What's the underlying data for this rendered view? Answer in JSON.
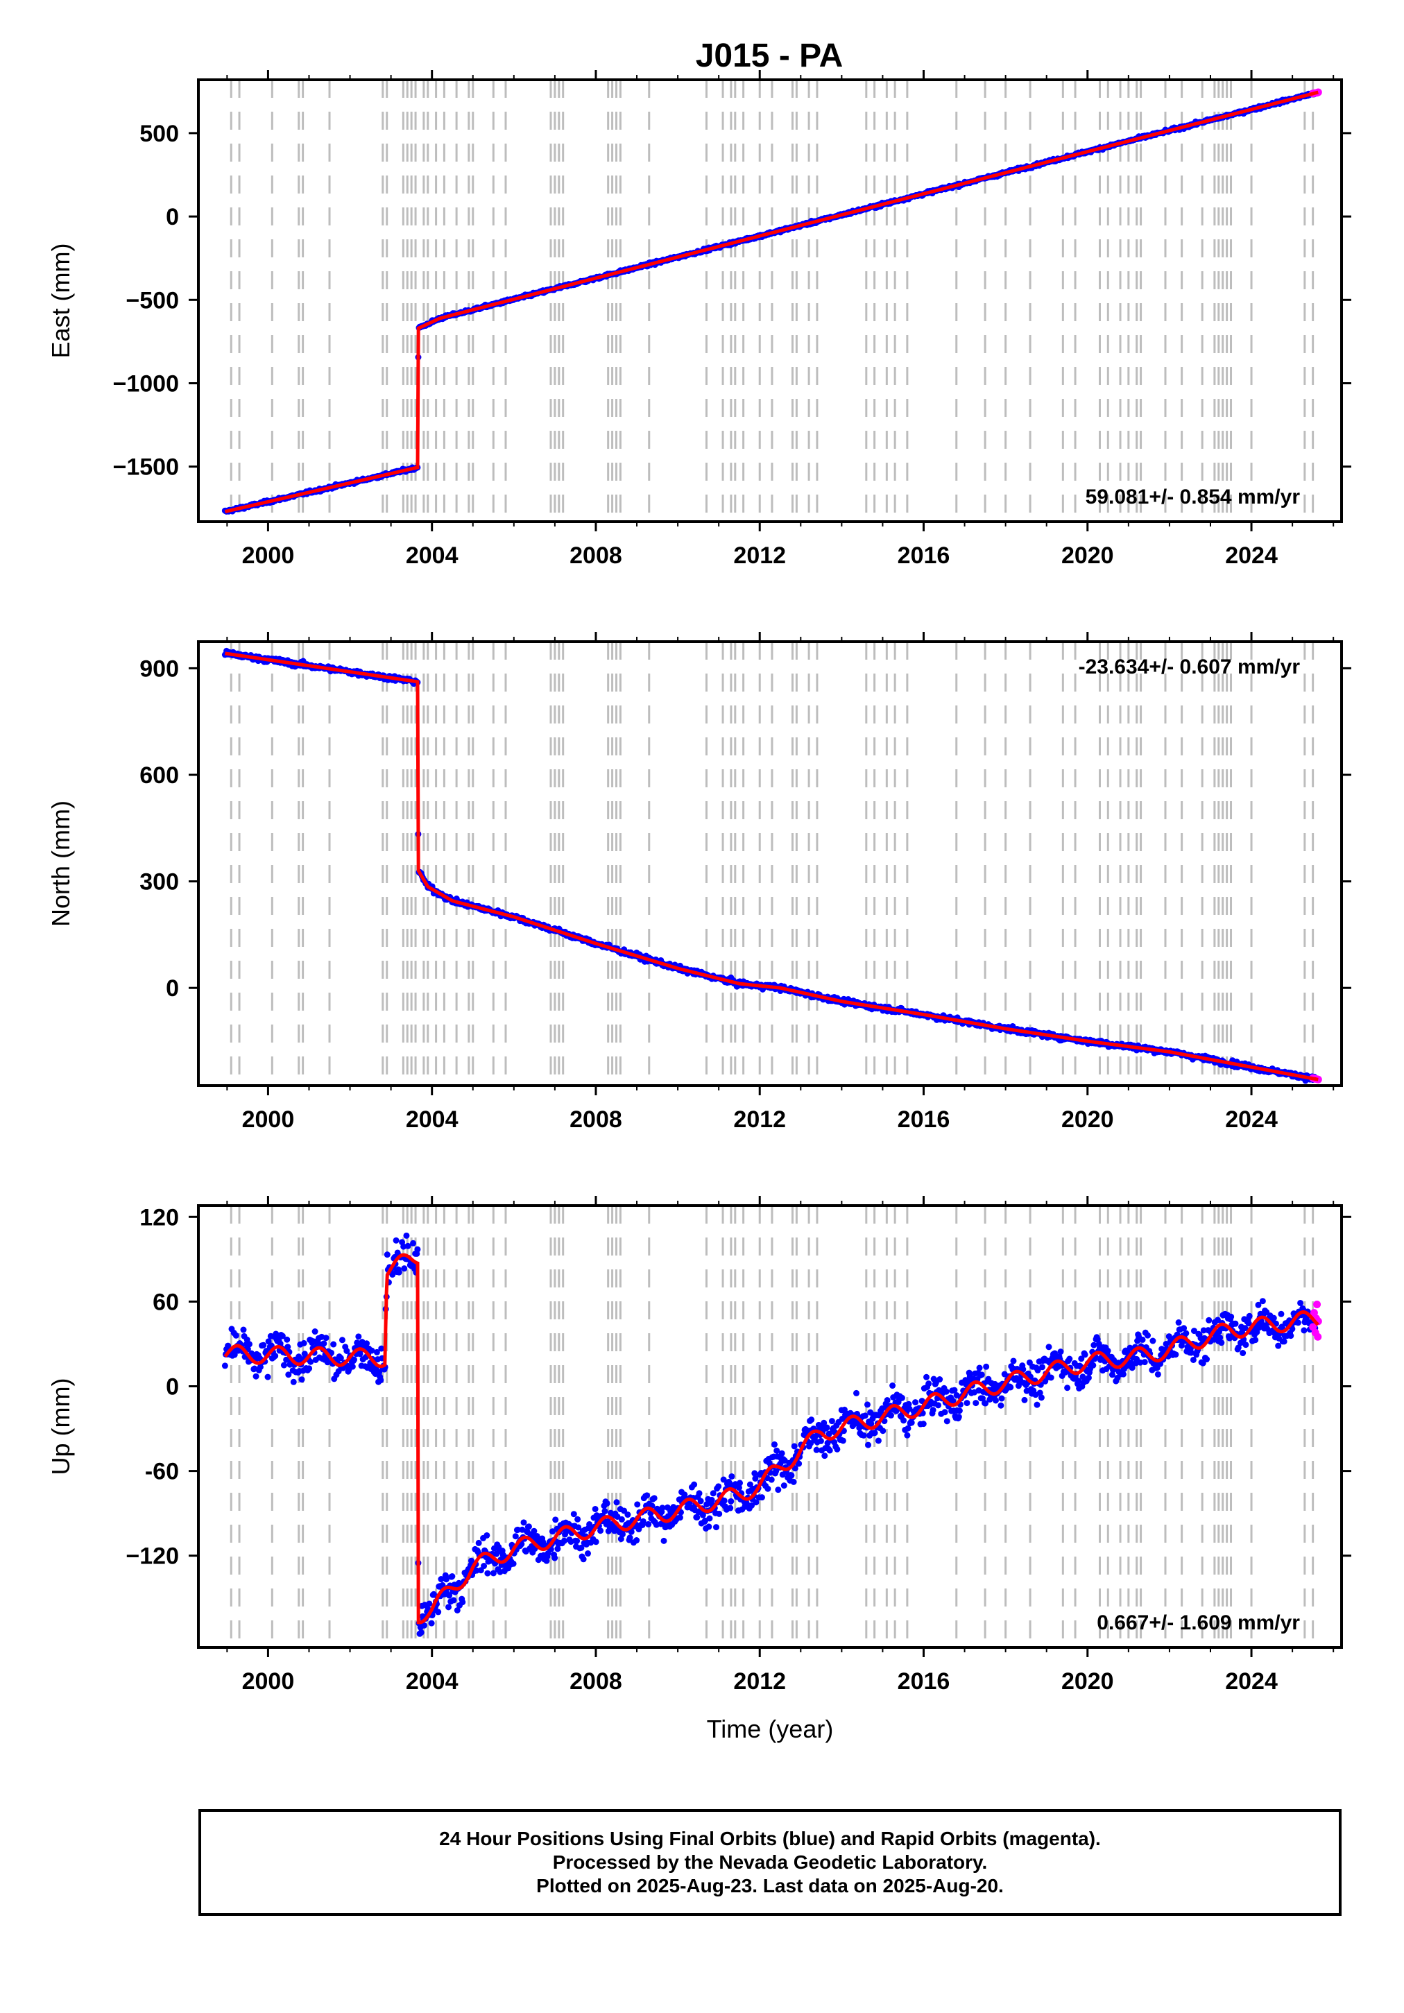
{
  "title": "J015 - PA",
  "colors": {
    "final": "#0000ff",
    "rapid": "#ff00ff",
    "model": "#ff0000",
    "events": "#bdbdbd",
    "frame": "#000000"
  },
  "chart_data": [
    {
      "type": "scatter",
      "name": "east",
      "ylabel": "East (mm)",
      "xlabel": "",
      "xlim": [
        1998.3,
        2026.2
      ],
      "ylim": [
        -1830,
        820
      ],
      "xticks": [
        2000,
        2004,
        2008,
        2012,
        2016,
        2020,
        2024
      ],
      "xticklabels": [
        "2000",
        "2004",
        "2008",
        "2012",
        "2016",
        "2020",
        "2024"
      ],
      "yticks": [
        500,
        0,
        -500,
        -1000,
        -1500
      ],
      "yticklabels": [
        "500",
        "0",
        "−500",
        "−1000",
        "−1500"
      ],
      "rate_label": "59.081+/- 0.854 mm/yr",
      "rate_position": "bottom-right",
      "scatter_noise": 6,
      "model": {
        "x": [
          1998.95,
          2003.65,
          2003.67,
          2004.2,
          2025.63
        ],
        "y": [
          -1770,
          -1505,
          -670,
          -610,
          745
        ]
      },
      "rapid_points": [
        [
          2025.5,
          738
        ],
        [
          2025.55,
          740
        ],
        [
          2025.6,
          742
        ],
        [
          2025.63,
          745
        ]
      ],
      "event_lines": [
        1999.1,
        1999.3,
        2000.1,
        2000.75,
        2000.85,
        2001.5,
        2002.8,
        2002.9,
        2003.3,
        2003.4,
        2003.5,
        2003.6,
        2003.8,
        2003.9,
        2004.1,
        2004.3,
        2004.6,
        2004.9,
        2005.0,
        2005.5,
        2005.8,
        2006.9,
        2007.0,
        2007.1,
        2007.2,
        2008.3,
        2008.4,
        2008.5,
        2008.6,
        2009.3,
        2010.7,
        2011.1,
        2011.3,
        2011.4,
        2011.6,
        2012.0,
        2012.3,
        2012.8,
        2012.9,
        2013.2,
        2013.4,
        2014.6,
        2014.8,
        2015.1,
        2015.3,
        2015.6,
        2016.8,
        2017.5,
        2018.0,
        2018.6,
        2019.4,
        2019.7,
        2020.3,
        2020.5,
        2020.8,
        2021.0,
        2021.2,
        2021.3,
        2021.9,
        2022.3,
        2022.8,
        2023.1,
        2023.2,
        2023.3,
        2023.4,
        2023.5,
        2024.0,
        2025.3,
        2025.5
      ]
    },
    {
      "type": "scatter",
      "name": "north",
      "ylabel": "North (mm)",
      "xlabel": "",
      "xlim": [
        1998.3,
        2026.2
      ],
      "ylim": [
        -275,
        975
      ],
      "xticks": [
        2000,
        2004,
        2008,
        2012,
        2016,
        2020,
        2024
      ],
      "xticklabels": [
        "2000",
        "2004",
        "2008",
        "2012",
        "2016",
        "2020",
        "2024"
      ],
      "yticks": [
        900,
        600,
        300,
        0
      ],
      "yticklabels": [
        "900",
        "600",
        "300",
        "0"
      ],
      "rate_label": "-23.634+/- 0.607 mm/yr",
      "rate_position": "top-right",
      "scatter_noise": 5,
      "model": {
        "x": [
          1998.95,
          2003.65,
          2003.67,
          2003.9,
          2004.5,
          2006.0,
          2008.0,
          2010.0,
          2011.5,
          2012.5,
          2014.0,
          2016.0,
          2018.0,
          2020.0,
          2022.0,
          2025.63
        ],
        "y": [
          942,
          862,
          330,
          285,
          245,
          200,
          125,
          55,
          12,
          0,
          -38,
          -75,
          -115,
          -150,
          -180,
          -258
        ]
      },
      "rapid_points": [
        [
          2025.5,
          -254
        ],
        [
          2025.55,
          -256
        ],
        [
          2025.6,
          -257
        ],
        [
          2025.63,
          -258
        ]
      ],
      "event_lines": [
        1999.1,
        1999.3,
        2000.1,
        2000.75,
        2000.85,
        2001.5,
        2002.8,
        2002.9,
        2003.3,
        2003.4,
        2003.5,
        2003.6,
        2003.8,
        2003.9,
        2004.1,
        2004.3,
        2004.6,
        2004.9,
        2005.0,
        2005.5,
        2005.8,
        2006.9,
        2007.0,
        2007.1,
        2007.2,
        2008.3,
        2008.4,
        2008.5,
        2008.6,
        2009.3,
        2010.7,
        2011.1,
        2011.3,
        2011.4,
        2011.6,
        2012.0,
        2012.3,
        2012.8,
        2012.9,
        2013.2,
        2013.4,
        2014.6,
        2014.8,
        2015.1,
        2015.3,
        2015.6,
        2016.8,
        2017.5,
        2018.0,
        2018.6,
        2019.4,
        2019.7,
        2020.3,
        2020.5,
        2020.8,
        2021.0,
        2021.2,
        2021.3,
        2021.9,
        2022.3,
        2022.8,
        2023.1,
        2023.2,
        2023.3,
        2023.4,
        2023.5,
        2024.0,
        2025.3,
        2025.5
      ]
    },
    {
      "type": "scatter",
      "name": "up",
      "ylabel": "Up (mm)",
      "xlabel": "Time (year)",
      "xlim": [
        1998.3,
        2026.2
      ],
      "ylim": [
        -185,
        128
      ],
      "xticks": [
        2000,
        2004,
        2008,
        2012,
        2016,
        2020,
        2024
      ],
      "xticklabels": [
        "2000",
        "2004",
        "2008",
        "2012",
        "2016",
        "2020",
        "2024"
      ],
      "yticks": [
        120,
        60,
        0,
        -60,
        -120
      ],
      "yticklabels": [
        "120",
        "60",
        "0",
        "-60",
        "−120"
      ],
      "rate_label": "0.667+/- 1.609 mm/yr",
      "rate_position": "bottom-right",
      "scatter_noise": 9,
      "model": {
        "x": [
          1998.95,
          2002.85,
          2002.9,
          2003.65,
          2003.67,
          2004.0,
          2005.0,
          2006.0,
          2008.0,
          2010.0,
          2011.5,
          2012.0,
          2013.5,
          2015.5,
          2017.0,
          2019.0,
          2020.0,
          2021.5,
          2023.5,
          2025.63
        ],
        "y": [
          23,
          20,
          82,
          92,
          -162,
          -158,
          -128,
          -115,
          -100,
          -88,
          -77,
          -70,
          -33,
          -18,
          -5,
          10,
          17,
          22,
          40,
          48
        ]
      },
      "seasonal_amplitude": 6,
      "rapid_points": [
        [
          2025.5,
          42
        ],
        [
          2025.53,
          52
        ],
        [
          2025.56,
          38
        ],
        [
          2025.58,
          48
        ],
        [
          2025.6,
          58
        ],
        [
          2025.62,
          35
        ],
        [
          2025.63,
          46
        ]
      ],
      "event_lines": [
        1999.1,
        1999.3,
        2000.1,
        2000.75,
        2000.85,
        2001.5,
        2002.8,
        2002.9,
        2003.3,
        2003.4,
        2003.5,
        2003.6,
        2003.8,
        2003.9,
        2004.1,
        2004.3,
        2004.6,
        2004.9,
        2005.0,
        2005.5,
        2005.8,
        2006.9,
        2007.0,
        2007.1,
        2007.2,
        2008.3,
        2008.4,
        2008.5,
        2008.6,
        2009.3,
        2010.7,
        2011.1,
        2011.3,
        2011.4,
        2011.6,
        2012.0,
        2012.3,
        2012.8,
        2012.9,
        2013.2,
        2013.4,
        2014.6,
        2014.8,
        2015.1,
        2015.3,
        2015.6,
        2016.8,
        2017.5,
        2018.0,
        2018.6,
        2019.4,
        2019.7,
        2020.3,
        2020.5,
        2020.8,
        2021.0,
        2021.2,
        2021.3,
        2021.9,
        2022.3,
        2022.8,
        2023.1,
        2023.2,
        2023.3,
        2023.4,
        2023.5,
        2024.0,
        2025.3,
        2025.5
      ]
    }
  ],
  "footer": {
    "line1": "24 Hour Positions Using Final Orbits (blue) and Rapid Orbits (magenta).",
    "line2": "Processed by the Nevada Geodetic Laboratory.",
    "line3": "Plotted on 2025-Aug-23. Last data on 2025-Aug-20."
  }
}
